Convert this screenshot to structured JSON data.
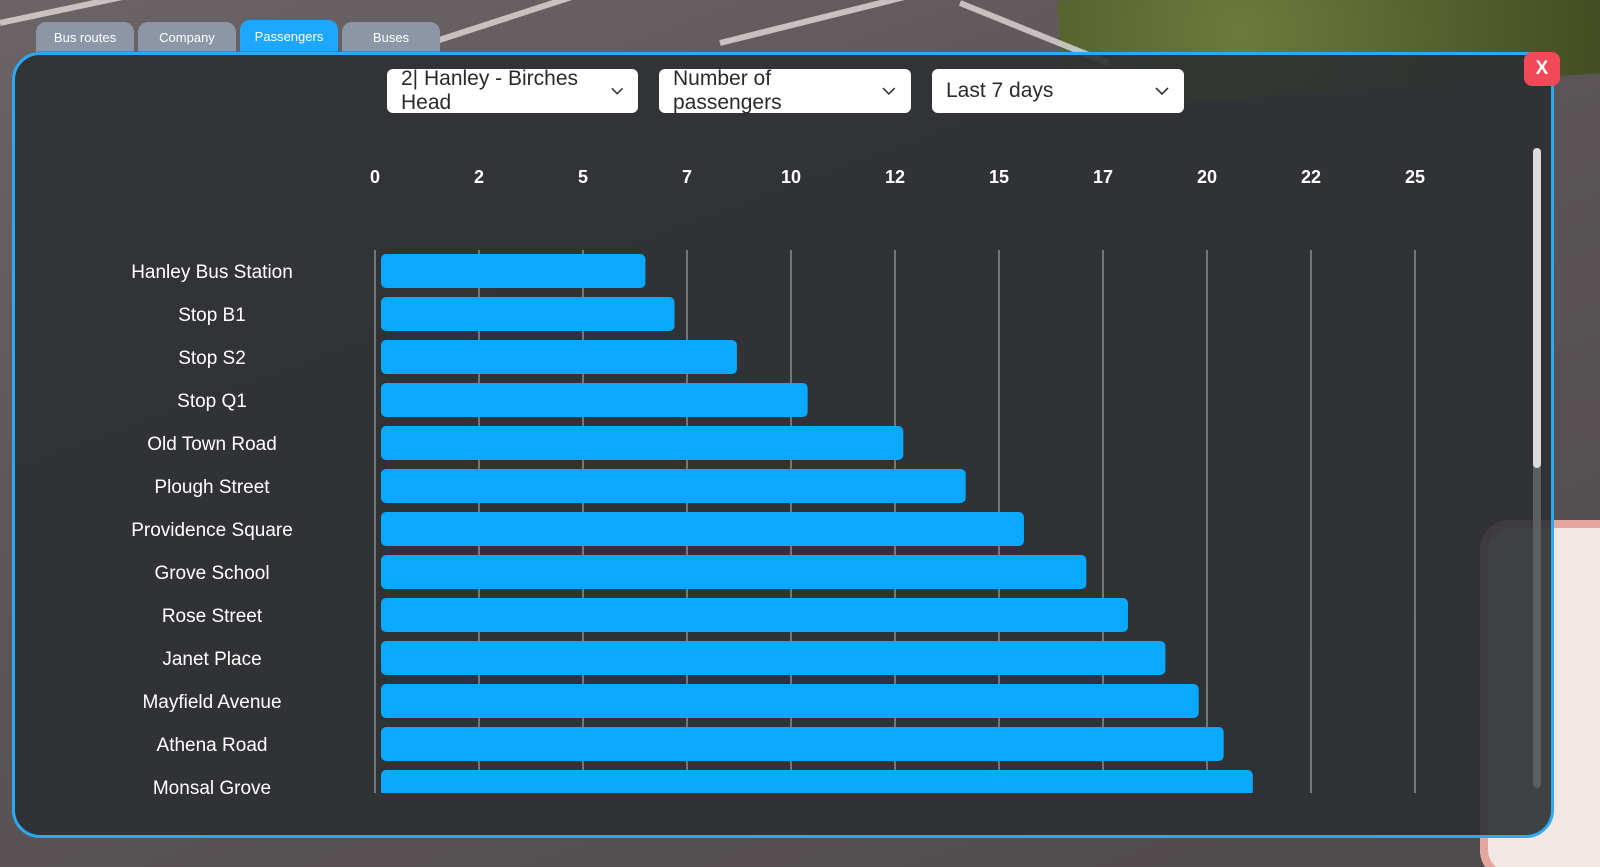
{
  "tabs": [
    {
      "label": "Bus routes",
      "active": false
    },
    {
      "label": "Company",
      "active": false
    },
    {
      "label": "Passengers",
      "active": true
    },
    {
      "label": "Buses",
      "active": false
    }
  ],
  "close_label": "X",
  "filters": {
    "route": "2| Hanley - Birches Head",
    "metric": "Number of passengers",
    "period": "Last 7 days"
  },
  "colors": {
    "accent": "#1ea7ff",
    "bar": "#09a9ff",
    "close": "#f04a58",
    "panel": "#2c2f32"
  },
  "chart_data": {
    "type": "bar",
    "orientation": "horizontal",
    "title": "",
    "xlabel": "",
    "ylabel": "",
    "xlim": [
      0,
      25
    ],
    "x_ticks": [
      "0",
      "2",
      "5",
      "7",
      "10",
      "12",
      "15",
      "17",
      "20",
      "22",
      "25"
    ],
    "x_tick_values": [
      0,
      2.5,
      5,
      7.5,
      10,
      12.5,
      15,
      17.5,
      20,
      22.5,
      25
    ],
    "categories": [
      "Hanley Bus Station",
      "Stop B1",
      "Stop S2",
      "Stop Q1",
      "Old Town Road",
      "Plough Street",
      "Providence Square",
      "Grove School",
      "Rose Street",
      "Janet Place",
      "Mayfield Avenue",
      "Athena Road",
      "Monsal Grove"
    ],
    "values": [
      6.5,
      7.2,
      8.7,
      10.4,
      12.7,
      14.2,
      15.6,
      17.1,
      18.1,
      19.0,
      19.8,
      20.4,
      21.1
    ],
    "grid": true,
    "legend": "none"
  }
}
